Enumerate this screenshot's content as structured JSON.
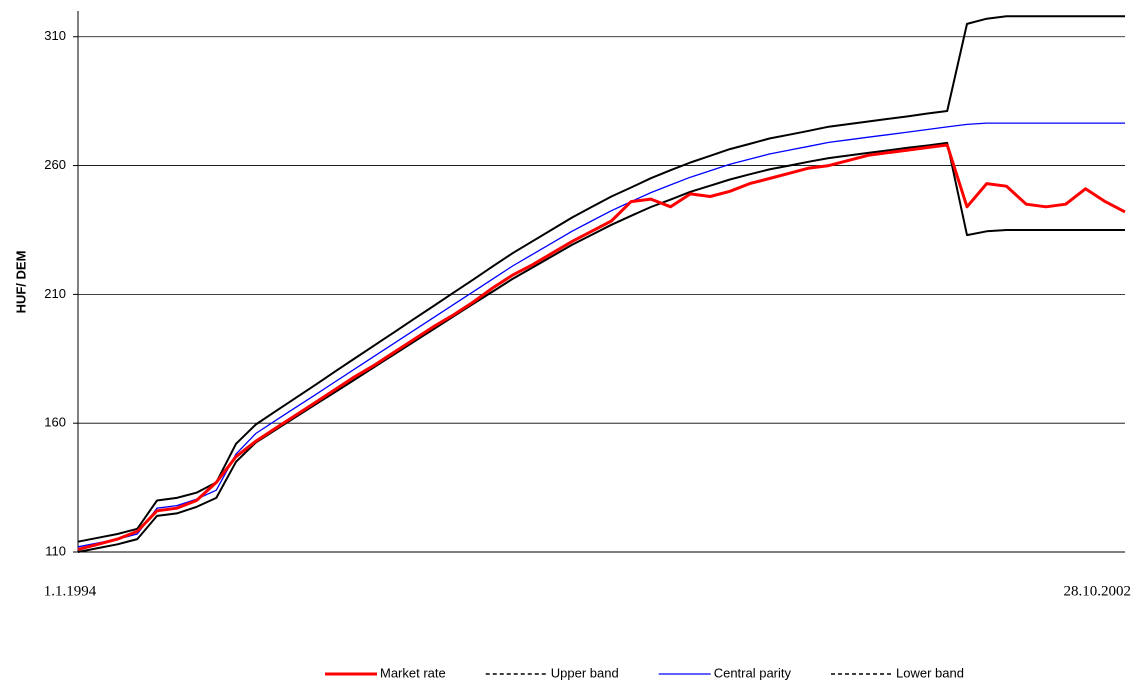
{
  "chart_data": {
    "type": "line",
    "y_axis_label": "HUF/ DEM",
    "categories": [
      "1.1.1994",
      null,
      null,
      null,
      null,
      null,
      null,
      null,
      null,
      null,
      null,
      null,
      null,
      null,
      null,
      null,
      null,
      null,
      null,
      null,
      null,
      null,
      null,
      null,
      null,
      null,
      null,
      null,
      null,
      null,
      null,
      null,
      null,
      null,
      null,
      null,
      null,
      null,
      null,
      null,
      null,
      null,
      null,
      null,
      null,
      null,
      null,
      null,
      null,
      null,
      null,
      null,
      null,
      "28.10.2002"
    ],
    "ylim": [
      110,
      320
    ],
    "yticks": [
      110,
      160,
      210,
      260,
      310
    ],
    "grid": true,
    "legend": "bottom",
    "series": [
      {
        "name": "Market rate",
        "color": "#ff0000",
        "values": [
          111,
          113,
          115,
          118,
          126,
          127,
          130,
          137,
          147,
          153,
          158,
          163,
          168,
          173,
          178,
          182.5,
          187.5,
          192.5,
          197.5,
          202,
          207,
          212.5,
          217.5,
          221.5,
          226,
          230.5,
          234.5,
          238.5,
          246,
          247,
          244,
          249,
          248,
          250,
          253,
          255,
          257,
          259,
          260,
          262,
          264,
          265,
          266,
          267,
          268,
          244,
          253,
          252,
          245,
          244,
          245,
          251,
          246,
          242
        ]
      },
      {
        "name": "Upper band",
        "color": "#000000",
        "dash": true,
        "values": [
          114,
          115.5,
          117,
          119,
          130,
          131,
          133,
          137,
          152,
          159.5,
          164.6,
          169.7,
          174.8,
          180,
          185.1,
          190.2,
          195.3,
          200.4,
          205.5,
          210.6,
          215.7,
          220.9,
          226,
          230.6,
          235.2,
          239.8,
          243.9,
          248,
          251.5,
          255.1,
          258.2,
          261.2,
          263.8,
          266.4,
          268.4,
          270.5,
          272,
          273.5,
          275.1,
          276.1,
          277.1,
          278.1,
          279.1,
          280.2,
          281.2,
          315,
          317,
          318,
          318,
          318,
          318,
          318,
          318,
          318
        ]
      },
      {
        "name": "Central parity",
        "color": "#0000ff",
        "values": [
          112,
          113.5,
          115,
          117,
          127,
          128,
          130.5,
          134,
          148,
          156,
          161,
          166,
          171,
          176,
          181,
          186,
          191,
          196,
          201,
          206,
          211,
          216,
          221,
          225.5,
          230,
          234.5,
          238.5,
          242.5,
          246,
          249.5,
          252.5,
          255.5,
          258,
          260.5,
          262.5,
          264.5,
          266,
          267.5,
          269,
          270,
          271,
          272,
          273,
          274,
          275,
          276,
          276.5,
          276.5,
          276.5,
          276.5,
          276.5,
          276.5,
          276.5,
          276.5
        ]
      },
      {
        "name": "Lower band",
        "color": "#000000",
        "dash": true,
        "values": [
          110,
          111.5,
          113,
          115,
          124,
          125,
          127.5,
          131,
          145,
          152.5,
          157.4,
          162.3,
          167.2,
          172,
          176.9,
          181.8,
          186.7,
          191.6,
          196.5,
          201.4,
          206.3,
          211.1,
          216,
          220.4,
          224.8,
          229.2,
          233.1,
          237,
          240.5,
          243.9,
          246.8,
          249.8,
          252.2,
          254.6,
          256.6,
          258.5,
          260,
          261.5,
          262.9,
          263.9,
          264.9,
          265.9,
          266.9,
          267.8,
          268.8,
          233,
          234.5,
          235,
          235,
          235,
          235,
          235,
          235,
          235
        ]
      }
    ]
  }
}
